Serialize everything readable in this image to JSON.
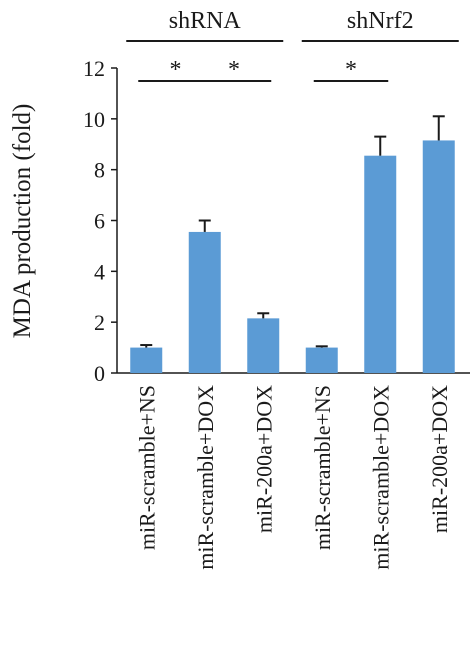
{
  "chart_data": {
    "type": "bar",
    "ylabel": "MDA production (fold)",
    "xlabel": "",
    "ylim": [
      0,
      12
    ],
    "yticks": [
      0,
      2,
      4,
      6,
      8,
      10,
      12
    ],
    "bar_color": "#5b9bd5",
    "categories": [
      "miR-scramble+NS",
      "miR-scramble+DOX",
      "miR-200a+DOX",
      "miR-scramble+NS",
      "miR-scramble+DOX",
      "miR-200a+DOX"
    ],
    "values": [
      1.0,
      5.55,
      2.15,
      1.0,
      8.55,
      9.15
    ],
    "errors": [
      0.1,
      0.45,
      0.2,
      0.05,
      0.75,
      0.95
    ],
    "groups": [
      {
        "label": "shRNA",
        "bars": [
          0,
          2
        ]
      },
      {
        "label": "shNrf2",
        "bars": [
          3,
          5
        ]
      }
    ],
    "significance": [
      {
        "label": "*",
        "from": 0,
        "to": 1
      },
      {
        "label": "*",
        "from": 1,
        "to": 2
      },
      {
        "label": "*",
        "from": 3,
        "to": 4
      }
    ]
  }
}
